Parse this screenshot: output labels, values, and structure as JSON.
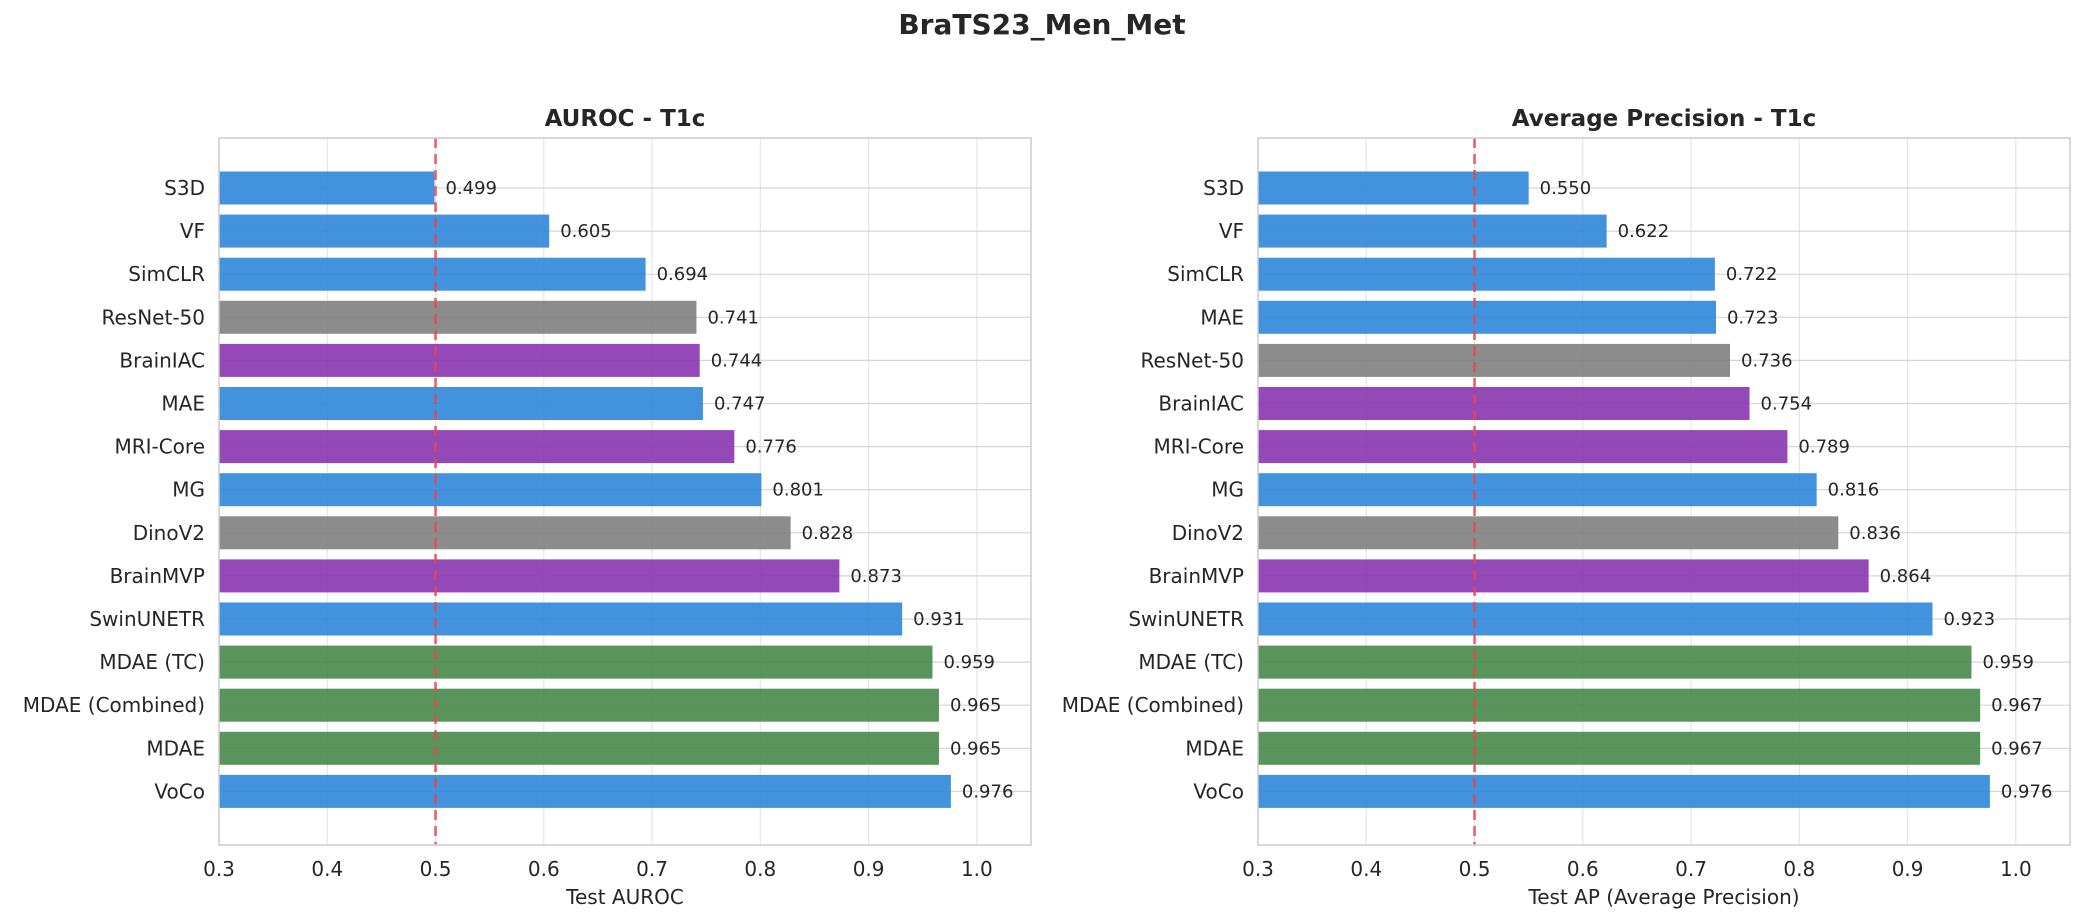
{
  "figure_title": "BraTS23_Men_Met",
  "chart_data": [
    {
      "type": "bar",
      "orientation": "horizontal",
      "title": "AUROC - T1c",
      "xlabel": "Test AUROC",
      "ylabel": "",
      "xlim": [
        0.3,
        1.05
      ],
      "xticks": [
        "0.3",
        "0.4",
        "0.5",
        "0.6",
        "0.7",
        "0.8",
        "0.9",
        "1.0"
      ],
      "reference_line": 0.5,
      "grid": true,
      "categories": [
        "S3D",
        "VF",
        "SimCLR",
        "ResNet-50",
        "BrainIAC",
        "MAE",
        "MRI-Core",
        "MG",
        "DinoV2",
        "BrainMVP",
        "SwinUNETR",
        "MDAE (TC)",
        "MDAE (Combined)",
        "MDAE",
        "VoCo"
      ],
      "values": [
        0.499,
        0.605,
        0.694,
        0.741,
        0.744,
        0.747,
        0.776,
        0.801,
        0.828,
        0.873,
        0.931,
        0.959,
        0.965,
        0.965,
        0.976
      ],
      "labels": [
        "0.499",
        "0.605",
        "0.694",
        "0.741",
        "0.744",
        "0.747",
        "0.776",
        "0.801",
        "0.828",
        "0.873",
        "0.931",
        "0.959",
        "0.965",
        "0.965",
        "0.976"
      ],
      "colors": [
        "#2f86da",
        "#2f86da",
        "#2f86da",
        "#808080",
        "#8a34b0",
        "#2f86da",
        "#8a34b0",
        "#2f86da",
        "#808080",
        "#8a34b0",
        "#2f86da",
        "#46884a",
        "#46884a",
        "#46884a",
        "#2f86da"
      ]
    },
    {
      "type": "bar",
      "orientation": "horizontal",
      "title": "Average Precision - T1c",
      "xlabel": "Test AP (Average Precision)",
      "ylabel": "",
      "xlim": [
        0.3,
        1.05
      ],
      "xticks": [
        "0.3",
        "0.4",
        "0.5",
        "0.6",
        "0.7",
        "0.8",
        "0.9",
        "1.0"
      ],
      "reference_line": 0.5,
      "grid": true,
      "categories": [
        "S3D",
        "VF",
        "SimCLR",
        "MAE",
        "ResNet-50",
        "BrainIAC",
        "MRI-Core",
        "MG",
        "DinoV2",
        "BrainMVP",
        "SwinUNETR",
        "MDAE (TC)",
        "MDAE (Combined)",
        "MDAE",
        "VoCo"
      ],
      "values": [
        0.55,
        0.622,
        0.722,
        0.723,
        0.736,
        0.754,
        0.789,
        0.816,
        0.836,
        0.864,
        0.923,
        0.959,
        0.967,
        0.967,
        0.976
      ],
      "labels": [
        "0.550",
        "0.622",
        "0.722",
        "0.723",
        "0.736",
        "0.754",
        "0.789",
        "0.816",
        "0.836",
        "0.864",
        "0.923",
        "0.959",
        "0.967",
        "0.967",
        "0.976"
      ],
      "colors": [
        "#2f86da",
        "#2f86da",
        "#2f86da",
        "#2f86da",
        "#808080",
        "#8a34b0",
        "#8a34b0",
        "#2f86da",
        "#808080",
        "#8a34b0",
        "#2f86da",
        "#46884a",
        "#46884a",
        "#46884a",
        "#2f86da"
      ]
    }
  ],
  "style": {
    "reference_line_color": "#e5484d",
    "grid_color": "#e6e6e6",
    "axes_edge_color": "#cccccc"
  }
}
